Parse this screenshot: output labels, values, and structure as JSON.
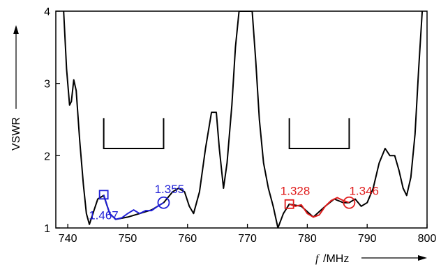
{
  "chart_data": {
    "type": "line",
    "title": "",
    "xlabel_italic": "f",
    "xlabel_unit": "/MHz",
    "ylabel": "VSWR",
    "xlim": [
      738,
      800
    ],
    "ylim": [
      1,
      4
    ],
    "xticks": [
      740,
      750,
      760,
      770,
      780,
      790,
      800
    ],
    "yticks": [
      1,
      2,
      3,
      4
    ],
    "grid": false,
    "series": [
      {
        "color": "#000000",
        "points": [
          [
            739.3,
            4.0
          ],
          [
            739.8,
            3.2
          ],
          [
            740.3,
            2.7
          ],
          [
            740.6,
            2.75
          ],
          [
            741.0,
            3.05
          ],
          [
            741.4,
            2.9
          ],
          [
            742.0,
            2.2
          ],
          [
            742.6,
            1.6
          ],
          [
            743.1,
            1.2
          ],
          [
            743.6,
            1.05
          ],
          [
            744.2,
            1.2
          ],
          [
            745.0,
            1.4
          ],
          [
            746.0,
            1.45
          ],
          [
            747.0,
            1.2
          ],
          [
            748.0,
            1.12
          ],
          [
            750.0,
            1.15
          ],
          [
            752.0,
            1.2
          ],
          [
            754.0,
            1.25
          ],
          [
            756.0,
            1.35
          ],
          [
            757.5,
            1.5
          ],
          [
            758.5,
            1.55
          ],
          [
            759.5,
            1.5
          ],
          [
            760.3,
            1.3
          ],
          [
            761.0,
            1.2
          ],
          [
            762.0,
            1.5
          ],
          [
            763.0,
            2.1
          ],
          [
            764.0,
            2.6
          ],
          [
            764.8,
            2.6
          ],
          [
            765.3,
            2.1
          ],
          [
            766.0,
            1.55
          ],
          [
            766.6,
            1.9
          ],
          [
            767.4,
            2.7
          ],
          [
            768.0,
            3.5
          ],
          [
            768.6,
            4.0
          ],
          [
            770.8,
            4.0
          ],
          [
            771.4,
            3.3
          ],
          [
            772.0,
            2.5
          ],
          [
            772.7,
            1.9
          ],
          [
            773.5,
            1.55
          ],
          [
            774.3,
            1.3
          ],
          [
            775.1,
            1.0
          ],
          [
            776.0,
            1.2
          ],
          [
            777.0,
            1.33
          ],
          [
            779.0,
            1.3
          ],
          [
            781.0,
            1.15
          ],
          [
            783.0,
            1.3
          ],
          [
            784.5,
            1.4
          ],
          [
            786.0,
            1.35
          ],
          [
            787.0,
            1.35
          ],
          [
            788.0,
            1.4
          ],
          [
            789.0,
            1.3
          ],
          [
            790.0,
            1.35
          ],
          [
            791.0,
            1.55
          ],
          [
            792.0,
            1.9
          ],
          [
            793.0,
            2.1
          ],
          [
            793.8,
            2.0
          ],
          [
            794.6,
            2.0
          ],
          [
            795.3,
            1.8
          ],
          [
            796.0,
            1.55
          ],
          [
            796.6,
            1.45
          ],
          [
            797.3,
            1.7
          ],
          [
            798.0,
            2.3
          ],
          [
            798.6,
            3.2
          ],
          [
            799.2,
            4.0
          ]
        ]
      },
      {
        "color": "#1f1fd6",
        "points": [
          [
            746.0,
            1.46
          ],
          [
            747.0,
            1.2
          ],
          [
            748.0,
            1.12
          ],
          [
            749.0,
            1.14
          ],
          [
            750.0,
            1.2
          ],
          [
            751.0,
            1.25
          ],
          [
            752.0,
            1.2
          ],
          [
            753.0,
            1.24
          ],
          [
            754.0,
            1.24
          ],
          [
            755.0,
            1.3
          ],
          [
            756.0,
            1.35
          ]
        ]
      },
      {
        "color": "#e01c1c",
        "points": [
          [
            777.0,
            1.33
          ],
          [
            778.0,
            1.3
          ],
          [
            779.0,
            1.32
          ],
          [
            780.0,
            1.2
          ],
          [
            781.0,
            1.15
          ],
          [
            782.0,
            1.18
          ],
          [
            783.0,
            1.3
          ],
          [
            784.0,
            1.38
          ],
          [
            785.0,
            1.42
          ],
          [
            786.0,
            1.38
          ],
          [
            787.0,
            1.35
          ]
        ]
      }
    ],
    "brackets": [
      {
        "x1": 746,
        "x2": 756,
        "y_top": 1.42,
        "y_base": 2.1,
        "color": "#000000"
      },
      {
        "x1": 777,
        "x2": 787,
        "y_top": 1.42,
        "y_base": 2.1,
        "color": "#000000"
      }
    ],
    "markers": [
      {
        "shape": "square",
        "x": 746,
        "y": 1.46,
        "color": "#1f1fd6"
      },
      {
        "shape": "circle",
        "x": 756,
        "y": 1.35,
        "color": "#1f1fd6"
      },
      {
        "shape": "square",
        "x": 777,
        "y": 1.33,
        "color": "#e01c1c"
      },
      {
        "shape": "circle",
        "x": 787,
        "y": 1.35,
        "color": "#e01c1c"
      }
    ],
    "annotations": [
      {
        "text": "1.467",
        "x": 743.5,
        "y": 1.12,
        "color": "#1f1fd6"
      },
      {
        "text": "1.355",
        "x": 754.5,
        "y": 1.48,
        "color": "#1f1fd6"
      },
      {
        "text": "1.328",
        "x": 775.5,
        "y": 1.46,
        "color": "#e01c1c"
      },
      {
        "text": "1.346",
        "x": 787.0,
        "y": 1.46,
        "color": "#e01c1c"
      }
    ]
  }
}
